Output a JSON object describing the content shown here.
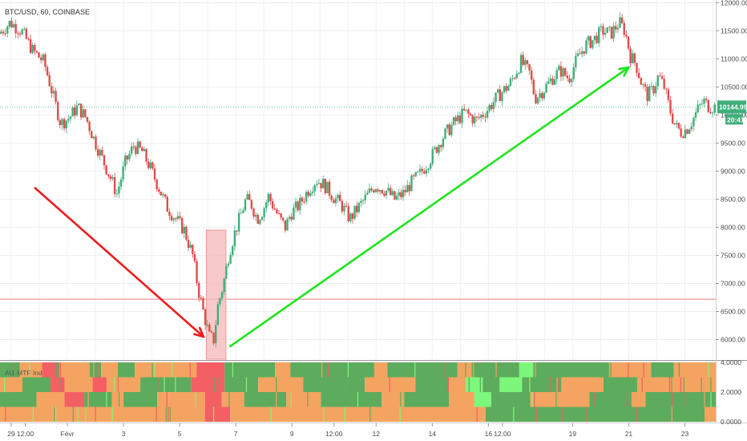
{
  "chart_data": {
    "type": "candlestick",
    "title": "BTC/USD, 60, COINBASE",
    "indicator_label": "A\\1 MTF Ind",
    "price_axis": {
      "ylim": [
        5650,
        12050
      ],
      "ticks": [
        "12000.00",
        "11500.00",
        "11000.00",
        "10500.00",
        "10000.00",
        "9500.00",
        "9000.00",
        "8500.00",
        "8000.00",
        "7500.00",
        "7000.00",
        "6500.00",
        "6000.00"
      ],
      "tick_values": [
        12000,
        11500,
        11000,
        10500,
        10000,
        9500,
        9000,
        8500,
        8000,
        7500,
        7000,
        6500,
        6000
      ]
    },
    "indicator_axis": {
      "ylim": [
        0,
        4
      ],
      "ticks": [
        "4.0000",
        "2.0000",
        "0.0000"
      ],
      "tick_values": [
        4,
        2,
        0
      ]
    },
    "time_axis": {
      "labels": [
        "29",
        "12:00",
        "Févr",
        "3",
        "5",
        "7",
        "9",
        "12:00",
        "12",
        "14",
        "16",
        "12:00",
        "19",
        "21",
        "23"
      ],
      "day_positions": [
        29.0,
        29.5,
        31.0,
        33.0,
        35.0,
        37.0,
        39.0,
        40.5,
        42.0,
        44.0,
        46.0,
        46.5,
        49.0,
        51.0,
        53.0
      ],
      "x_range": [
        28.6,
        54.1
      ]
    },
    "current_price": {
      "label": "10144.99",
      "value": 10144.99,
      "countdown": "20:41"
    },
    "horizontal_line": {
      "value": 6720,
      "color": "#f08080"
    },
    "price_path": [
      [
        28.6,
        11450
      ],
      [
        29.0,
        11650
      ],
      [
        29.4,
        11500
      ],
      [
        29.8,
        11150
      ],
      [
        30.2,
        10950
      ],
      [
        30.5,
        10400
      ],
      [
        30.8,
        9850
      ],
      [
        31.1,
        9950
      ],
      [
        31.4,
        10150
      ],
      [
        31.7,
        9950
      ],
      [
        32.0,
        9550
      ],
      [
        32.3,
        9200
      ],
      [
        32.6,
        8850
      ],
      [
        32.8,
        8600
      ],
      [
        33.1,
        9150
      ],
      [
        33.4,
        9450
      ],
      [
        33.7,
        9350
      ],
      [
        34.0,
        9050
      ],
      [
        34.3,
        8700
      ],
      [
        34.6,
        8350
      ],
      [
        34.9,
        8150
      ],
      [
        35.2,
        7950
      ],
      [
        35.5,
        7500
      ],
      [
        35.7,
        6900
      ],
      [
        35.9,
        6450
      ],
      [
        36.1,
        6050
      ],
      [
        36.25,
        6000
      ],
      [
        36.4,
        6600
      ],
      [
        36.6,
        7000
      ],
      [
        36.8,
        7550
      ],
      [
        37.0,
        7900
      ],
      [
        37.2,
        8200
      ],
      [
        37.4,
        8500
      ],
      [
        37.6,
        8400
      ],
      [
        37.8,
        8150
      ],
      [
        38.0,
        8300
      ],
      [
        38.2,
        8550
      ],
      [
        38.4,
        8350
      ],
      [
        38.6,
        8150
      ],
      [
        38.8,
        8000
      ],
      [
        39.0,
        8250
      ],
      [
        39.3,
        8400
      ],
      [
        39.6,
        8650
      ],
      [
        39.9,
        8850
      ],
      [
        40.2,
        8750
      ],
      [
        40.5,
        8550
      ],
      [
        40.8,
        8400
      ],
      [
        41.1,
        8150
      ],
      [
        41.4,
        8350
      ],
      [
        41.7,
        8550
      ],
      [
        42.0,
        8750
      ],
      [
        42.4,
        8650
      ],
      [
        42.7,
        8500
      ],
      [
        43.0,
        8600
      ],
      [
        43.3,
        8800
      ],
      [
        43.6,
        8950
      ],
      [
        44.0,
        9250
      ],
      [
        44.4,
        9600
      ],
      [
        44.8,
        9850
      ],
      [
        45.2,
        10050
      ],
      [
        45.6,
        9900
      ],
      [
        46.0,
        10100
      ],
      [
        46.4,
        10350
      ],
      [
        46.8,
        10550
      ],
      [
        47.2,
        10950
      ],
      [
        47.5,
        10750
      ],
      [
        47.7,
        10300
      ],
      [
        48.0,
        10450
      ],
      [
        48.3,
        10650
      ],
      [
        48.6,
        10800
      ],
      [
        48.9,
        10650
      ],
      [
        49.2,
        11000
      ],
      [
        49.5,
        11250
      ],
      [
        49.8,
        11350
      ],
      [
        50.1,
        11500
      ],
      [
        50.4,
        11450
      ],
      [
        50.7,
        11650
      ],
      [
        50.9,
        11500
      ],
      [
        51.1,
        11050
      ],
      [
        51.3,
        10900
      ],
      [
        51.5,
        10550
      ],
      [
        51.7,
        10350
      ],
      [
        51.9,
        10450
      ],
      [
        52.1,
        10700
      ],
      [
        52.3,
        10500
      ],
      [
        52.5,
        10100
      ],
      [
        52.7,
        9800
      ],
      [
        52.9,
        9700
      ],
      [
        53.1,
        9750
      ],
      [
        53.3,
        9900
      ],
      [
        53.5,
        10100
      ],
      [
        53.7,
        10250
      ],
      [
        53.9,
        10150
      ],
      [
        54.1,
        10144
      ]
    ],
    "highlight_box": {
      "x0": 35.95,
      "x1": 36.65,
      "y0": 5650,
      "y1": 7950,
      "color": "#f6b7b7"
    },
    "arrows": [
      {
        "color": "#ee1c1c",
        "from": [
          29.85,
          8700
        ],
        "to": [
          35.85,
          6050
        ]
      },
      {
        "color": "#1ee51e",
        "from": [
          36.8,
          5880
        ],
        "to": [
          51.0,
          10850
        ]
      }
    ],
    "indicator_colors": {
      "orange": "#f4a460",
      "green": "#5dab5d",
      "red": "#f45f63",
      "lightgreen": "#7cf77c"
    },
    "indicator_rows": [
      [
        [
          28.6,
          29.3,
          "green"
        ],
        [
          29.3,
          30.1,
          "orange"
        ],
        [
          30.1,
          30.6,
          "red"
        ],
        [
          30.6,
          31.8,
          "orange"
        ],
        [
          31.8,
          32.2,
          "green"
        ],
        [
          32.2,
          32.8,
          "orange"
        ],
        [
          32.8,
          33.4,
          "green"
        ],
        [
          33.4,
          35.6,
          "orange"
        ],
        [
          35.6,
          36.6,
          "red"
        ],
        [
          36.6,
          38.4,
          "green"
        ],
        [
          38.4,
          38.9,
          "orange"
        ],
        [
          38.9,
          41.9,
          "green"
        ],
        [
          41.9,
          42.4,
          "orange"
        ],
        [
          42.4,
          44.9,
          "green"
        ],
        [
          44.9,
          45.4,
          "orange"
        ],
        [
          45.4,
          47.1,
          "green"
        ],
        [
          47.1,
          47.6,
          "lightgreen"
        ],
        [
          47.6,
          50.3,
          "green"
        ],
        [
          50.3,
          51.8,
          "orange"
        ],
        [
          51.8,
          52.6,
          "green"
        ],
        [
          52.6,
          54.1,
          "orange"
        ]
      ],
      [
        [
          28.6,
          29.4,
          "orange"
        ],
        [
          29.4,
          30.4,
          "green"
        ],
        [
          30.4,
          30.9,
          "red"
        ],
        [
          30.9,
          31.9,
          "orange"
        ],
        [
          31.9,
          32.4,
          "red"
        ],
        [
          32.4,
          33.6,
          "orange"
        ],
        [
          33.6,
          35.4,
          "green"
        ],
        [
          35.4,
          36.6,
          "red"
        ],
        [
          36.6,
          37.8,
          "green"
        ],
        [
          37.8,
          39.4,
          "orange"
        ],
        [
          39.4,
          41.6,
          "green"
        ],
        [
          41.6,
          43.4,
          "orange"
        ],
        [
          43.4,
          44.6,
          "green"
        ],
        [
          44.6,
          45.2,
          "orange"
        ],
        [
          45.2,
          45.8,
          "lightgreen"
        ],
        [
          45.8,
          46.4,
          "green"
        ],
        [
          46.4,
          47.2,
          "lightgreen"
        ],
        [
          47.2,
          48.6,
          "green"
        ],
        [
          48.6,
          50.1,
          "orange"
        ],
        [
          50.1,
          51.3,
          "green"
        ],
        [
          51.3,
          54.1,
          "orange"
        ]
      ],
      [
        [
          28.6,
          29.9,
          "green"
        ],
        [
          29.9,
          30.9,
          "orange"
        ],
        [
          30.9,
          31.6,
          "red"
        ],
        [
          31.6,
          32.6,
          "green"
        ],
        [
          32.6,
          33.0,
          "orange"
        ],
        [
          33.0,
          34.2,
          "green"
        ],
        [
          34.2,
          35.9,
          "orange"
        ],
        [
          35.9,
          36.5,
          "red"
        ],
        [
          36.5,
          37.3,
          "orange"
        ],
        [
          37.3,
          38.8,
          "green"
        ],
        [
          38.8,
          40.0,
          "orange"
        ],
        [
          40.0,
          42.2,
          "green"
        ],
        [
          42.2,
          43.0,
          "orange"
        ],
        [
          43.0,
          44.6,
          "green"
        ],
        [
          44.6,
          45.5,
          "orange"
        ],
        [
          45.5,
          46.1,
          "lightgreen"
        ],
        [
          46.1,
          47.5,
          "green"
        ],
        [
          47.5,
          49.6,
          "orange"
        ],
        [
          49.6,
          51.1,
          "green"
        ],
        [
          51.1,
          51.6,
          "orange"
        ],
        [
          51.6,
          54.1,
          "green"
        ]
      ],
      [
        [
          28.6,
          35.9,
          "orange"
        ],
        [
          35.9,
          36.8,
          "red"
        ],
        [
          36.8,
          45.9,
          "orange"
        ],
        [
          45.9,
          53.7,
          "green"
        ],
        [
          53.7,
          54.1,
          "orange"
        ]
      ]
    ]
  }
}
